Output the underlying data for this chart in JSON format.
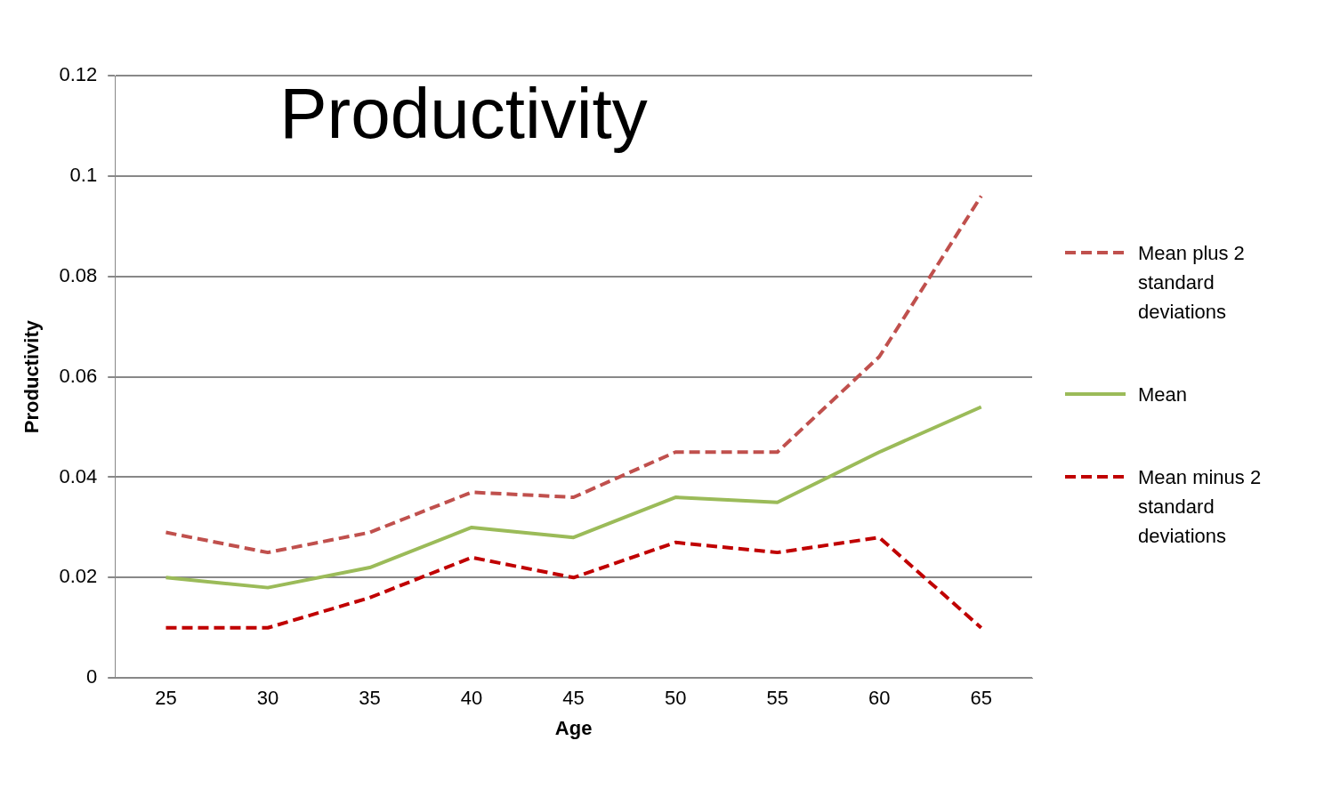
{
  "chart_data": {
    "type": "line",
    "title": "Productivity",
    "xlabel": "Age",
    "ylabel": "Productivity",
    "categories": [
      "25",
      "30",
      "35",
      "40",
      "45",
      "50",
      "55",
      "60",
      "65"
    ],
    "series": [
      {
        "name": "Mean plus 2 standard deviations",
        "color": "#c0504d",
        "line_style": "dashed",
        "values": [
          0.029,
          0.025,
          0.029,
          0.037,
          0.036,
          0.045,
          0.045,
          0.064,
          0.096
        ]
      },
      {
        "name": "Mean",
        "color": "#9bbb59",
        "line_style": "solid",
        "values": [
          0.02,
          0.018,
          0.022,
          0.03,
          0.028,
          0.036,
          0.035,
          0.045,
          0.054
        ]
      },
      {
        "name": "Mean minus 2 standard deviations",
        "color": "#c00000",
        "line_style": "dashed",
        "values": [
          0.01,
          0.01,
          0.016,
          0.024,
          0.02,
          0.027,
          0.025,
          0.028,
          0.01
        ]
      }
    ],
    "ylim": [
      0,
      0.12
    ],
    "yticks": [
      0,
      0.02,
      0.04,
      0.06,
      0.08,
      0.1,
      0.12
    ],
    "grid": "y",
    "legend": "right",
    "marker": "none"
  }
}
